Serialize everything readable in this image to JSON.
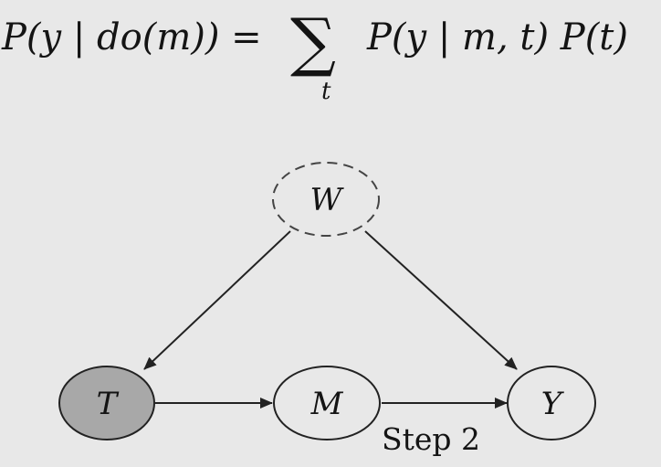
{
  "formula": {
    "lhs": "P(y | do(m)) =",
    "sum_symbol": "∑",
    "sum_index": "t",
    "rhs": "P(y | m, t) P(t)"
  },
  "diagram": {
    "nodes": [
      {
        "id": "W",
        "label": "W",
        "style": "dashed",
        "fill": "#e8e8e8"
      },
      {
        "id": "T",
        "label": "T",
        "style": "solid",
        "fill": "#a8a8a8"
      },
      {
        "id": "M",
        "label": "M",
        "style": "solid",
        "fill": "#e8e8e8"
      },
      {
        "id": "Y",
        "label": "Y",
        "style": "solid",
        "fill": "#e8e8e8"
      }
    ],
    "edges": [
      {
        "from": "W",
        "to": "T"
      },
      {
        "from": "W",
        "to": "Y"
      },
      {
        "from": "T",
        "to": "M"
      },
      {
        "from": "M",
        "to": "Y"
      }
    ],
    "step_label": "Step 2"
  },
  "colors": {
    "background": "#e8e8e8",
    "stroke": "#222222",
    "treatment_fill": "#a8a8a8"
  }
}
